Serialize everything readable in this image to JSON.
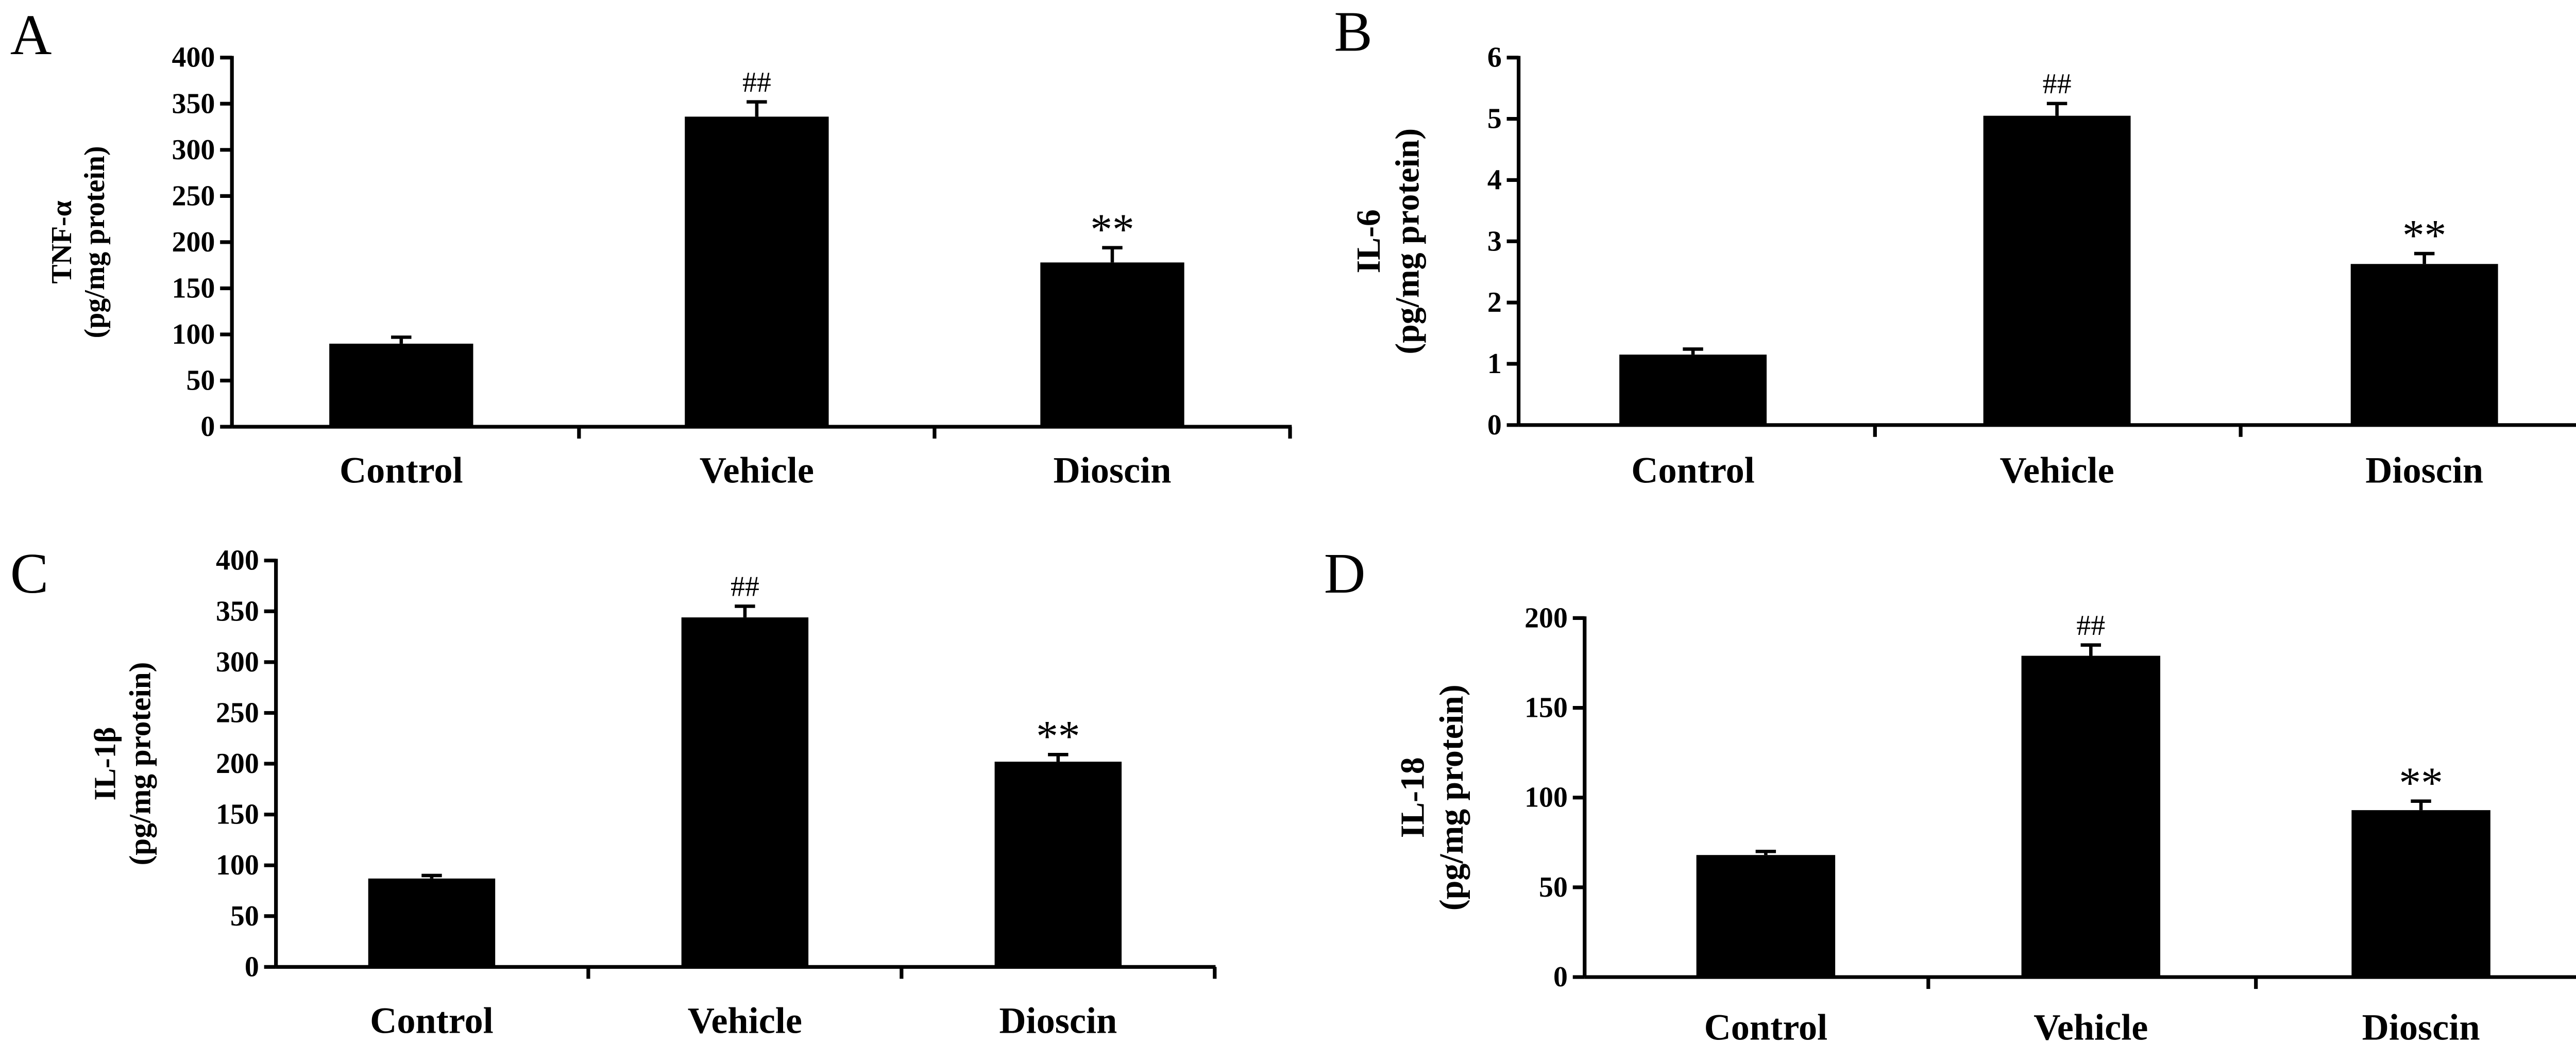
{
  "colors": {
    "bar": "#000000",
    "axis": "#000000",
    "background": "#ffffff"
  },
  "chart_data": [
    {
      "panel": "A",
      "type": "bar",
      "ylabel": "TNF-α",
      "ylabel_unit": "(pg/mg protein)",
      "categories": [
        "Control",
        "Vehicle",
        "Dioscin"
      ],
      "values": [
        90,
        336,
        178
      ],
      "errors": [
        7,
        16,
        16
      ],
      "annotations": [
        "",
        "##",
        "**"
      ],
      "ylim": [
        0,
        400
      ],
      "yticks": [
        0,
        50,
        100,
        150,
        200,
        250,
        300,
        350,
        400
      ],
      "grid": false
    },
    {
      "panel": "B",
      "type": "bar",
      "ylabel": "IL-6",
      "ylabel_unit": "(pg/mg protein)",
      "categories": [
        "Control",
        "Vehicle",
        "Dioscin"
      ],
      "values": [
        1.15,
        5.05,
        2.63
      ],
      "errors": [
        0.09,
        0.2,
        0.17
      ],
      "annotations": [
        "",
        "##",
        "**"
      ],
      "ylim": [
        0,
        6
      ],
      "yticks": [
        0,
        1,
        2,
        3,
        4,
        5,
        6
      ],
      "grid": false
    },
    {
      "panel": "C",
      "type": "bar",
      "ylabel": "IL-1β",
      "ylabel_unit": "(pg/mg protein)",
      "categories": [
        "Control",
        "Vehicle",
        "Dioscin"
      ],
      "values": [
        87,
        344,
        202
      ],
      "errors": [
        3,
        11,
        7
      ],
      "annotations": [
        "",
        "##",
        "**"
      ],
      "ylim": [
        0,
        400
      ],
      "yticks": [
        0,
        50,
        100,
        150,
        200,
        250,
        300,
        350,
        400
      ],
      "grid": false
    },
    {
      "panel": "D",
      "type": "bar",
      "ylabel": "IL-18",
      "ylabel_unit": "(pg/mg protein)",
      "categories": [
        "Control",
        "Vehicle",
        "Dioscin"
      ],
      "values": [
        68,
        179,
        93
      ],
      "errors": [
        2,
        6,
        5
      ],
      "annotations": [
        "",
        "##",
        "**"
      ],
      "ylim": [
        0,
        200
      ],
      "yticks": [
        0,
        50,
        100,
        150,
        200
      ],
      "grid": false
    }
  ]
}
